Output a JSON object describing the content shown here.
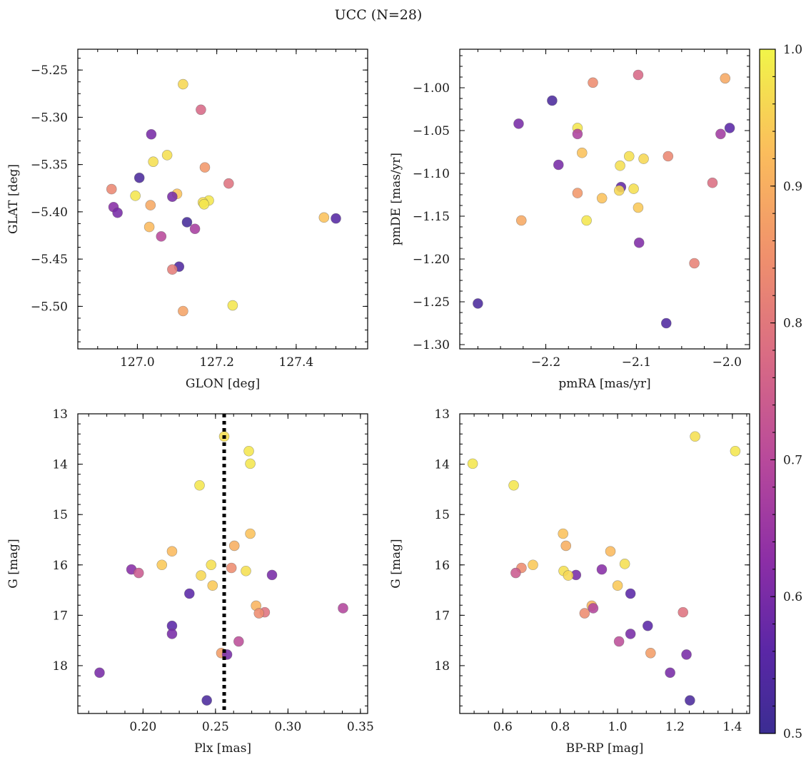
{
  "title": "UCC (N=28)",
  "chart_data": [
    {
      "type": "scatter",
      "xlabel": "GLON [deg]",
      "ylabel": "GLAT [deg]",
      "xlim": [
        126.85,
        127.58
      ],
      "ylim": [
        -5.545,
        -5.228
      ],
      "y_inverted": false,
      "x_ticks": [
        127.0,
        127.2,
        127.4
      ],
      "x_tick_labels": [
        "127.0",
        "127.2",
        "127.4"
      ],
      "y_ticks": [
        -5.25,
        -5.3,
        -5.35,
        -5.4,
        -5.45,
        -5.5
      ],
      "y_tick_labels": [
        "−5.25",
        "−5.30",
        "−5.35",
        "−5.40",
        "−5.45",
        "−5.50"
      ],
      "points": [
        {
          "x": 127.115,
          "y": -5.265,
          "c": 0.96
        },
        {
          "x": 127.16,
          "y": -5.292,
          "c": 0.77
        },
        {
          "x": 127.035,
          "y": -5.318,
          "c": 0.6
        },
        {
          "x": 127.075,
          "y": -5.34,
          "c": 0.97
        },
        {
          "x": 127.04,
          "y": -5.347,
          "c": 0.97
        },
        {
          "x": 127.17,
          "y": -5.353,
          "c": 0.86
        },
        {
          "x": 127.005,
          "y": -5.364,
          "c": 0.53
        },
        {
          "x": 127.23,
          "y": -5.37,
          "c": 0.79
        },
        {
          "x": 126.935,
          "y": -5.376,
          "c": 0.83
        },
        {
          "x": 127.1,
          "y": -5.381,
          "c": 0.93
        },
        {
          "x": 126.995,
          "y": -5.383,
          "c": 0.98
        },
        {
          "x": 127.088,
          "y": -5.384,
          "c": 0.6
        },
        {
          "x": 127.18,
          "y": -5.388,
          "c": 0.98
        },
        {
          "x": 127.165,
          "y": -5.39,
          "c": 0.97
        },
        {
          "x": 127.168,
          "y": -5.392,
          "c": 0.98
        },
        {
          "x": 127.033,
          "y": -5.393,
          "c": 0.89
        },
        {
          "x": 126.94,
          "y": -5.395,
          "c": 0.62
        },
        {
          "x": 126.95,
          "y": -5.401,
          "c": 0.6
        },
        {
          "x": 127.47,
          "y": -5.406,
          "c": 0.93
        },
        {
          "x": 127.5,
          "y": -5.407,
          "c": 0.55
        },
        {
          "x": 127.125,
          "y": -5.411,
          "c": 0.52
        },
        {
          "x": 127.03,
          "y": -5.416,
          "c": 0.92
        },
        {
          "x": 127.145,
          "y": -5.418,
          "c": 0.67
        },
        {
          "x": 127.06,
          "y": -5.426,
          "c": 0.7
        },
        {
          "x": 127.105,
          "y": -5.458,
          "c": 0.54
        },
        {
          "x": 127.088,
          "y": -5.461,
          "c": 0.81
        },
        {
          "x": 127.115,
          "y": -5.505,
          "c": 0.88
        },
        {
          "x": 127.24,
          "y": -5.499,
          "c": 0.98
        }
      ]
    },
    {
      "type": "scatter",
      "xlabel": "pmRA [mas/yr]",
      "ylabel": "pmDE [mas/yr]",
      "xlim": [
        -2.295,
        -1.975
      ],
      "ylim": [
        -1.305,
        -0.955
      ],
      "y_inverted": false,
      "x_ticks": [
        -2.2,
        -2.1,
        -2.0
      ],
      "x_tick_labels": [
        "−2.2",
        "−2.1",
        "−2.0"
      ],
      "y_ticks": [
        -1.0,
        -1.05,
        -1.1,
        -1.15,
        -1.2,
        -1.25,
        -1.3
      ],
      "y_tick_labels": [
        "−1.00",
        "−1.05",
        "−1.10",
        "−1.15",
        "−1.20",
        "−1.25",
        "−1.30"
      ],
      "points": [
        {
          "x": -2.098,
          "y": -0.985,
          "c": 0.77
        },
        {
          "x": -2.002,
          "y": -0.989,
          "c": 0.89
        },
        {
          "x": -2.148,
          "y": -0.994,
          "c": 0.84
        },
        {
          "x": -2.193,
          "y": -1.015,
          "c": 0.53
        },
        {
          "x": -2.23,
          "y": -1.042,
          "c": 0.6
        },
        {
          "x": -1.997,
          "y": -1.047,
          "c": 0.56
        },
        {
          "x": -2.165,
          "y": -1.047,
          "c": 0.98
        },
        {
          "x": -2.165,
          "y": -1.054,
          "c": 0.68
        },
        {
          "x": -2.007,
          "y": -1.054,
          "c": 0.66
        },
        {
          "x": -2.16,
          "y": -1.076,
          "c": 0.93
        },
        {
          "x": -2.108,
          "y": -1.08,
          "c": 0.97
        },
        {
          "x": -2.065,
          "y": -1.08,
          "c": 0.83
        },
        {
          "x": -2.092,
          "y": -1.083,
          "c": 0.96
        },
        {
          "x": -2.118,
          "y": -1.091,
          "c": 0.97
        },
        {
          "x": -2.186,
          "y": -1.09,
          "c": 0.6
        },
        {
          "x": -2.016,
          "y": -1.111,
          "c": 0.78
        },
        {
          "x": -2.117,
          "y": -1.116,
          "c": 0.57
        },
        {
          "x": -2.103,
          "y": -1.118,
          "c": 0.97
        },
        {
          "x": -2.119,
          "y": -1.12,
          "c": 0.96
        },
        {
          "x": -2.165,
          "y": -1.123,
          "c": 0.86
        },
        {
          "x": -2.138,
          "y": -1.129,
          "c": 0.93
        },
        {
          "x": -2.098,
          "y": -1.14,
          "c": 0.94
        },
        {
          "x": -2.227,
          "y": -1.155,
          "c": 0.89
        },
        {
          "x": -2.155,
          "y": -1.155,
          "c": 0.98
        },
        {
          "x": -2.097,
          "y": -1.181,
          "c": 0.61
        },
        {
          "x": -2.036,
          "y": -1.205,
          "c": 0.82
        },
        {
          "x": -2.275,
          "y": -1.252,
          "c": 0.53
        },
        {
          "x": -2.067,
          "y": -1.275,
          "c": 0.54
        }
      ]
    },
    {
      "type": "scatter",
      "xlabel": "Plx [mas]",
      "ylabel": "G [mag]",
      "xlim": [
        0.155,
        0.355
      ],
      "ylim": [
        13.0,
        18.95
      ],
      "y_inverted": true,
      "vline": 0.256,
      "x_ticks": [
        0.2,
        0.25,
        0.3,
        0.35
      ],
      "x_tick_labels": [
        "0.20",
        "0.25",
        "0.30",
        "0.35"
      ],
      "y_ticks": [
        13,
        14,
        15,
        16,
        17,
        18
      ],
      "y_tick_labels": [
        "13",
        "14",
        "15",
        "16",
        "17",
        "18"
      ],
      "points": [
        {
          "x": 0.256,
          "y": 13.45,
          "c": 0.97
        },
        {
          "x": 0.273,
          "y": 13.74,
          "c": 0.98
        },
        {
          "x": 0.274,
          "y": 13.99,
          "c": 0.98
        },
        {
          "x": 0.239,
          "y": 14.42,
          "c": 0.98
        },
        {
          "x": 0.274,
          "y": 15.38,
          "c": 0.93
        },
        {
          "x": 0.263,
          "y": 15.62,
          "c": 0.9
        },
        {
          "x": 0.22,
          "y": 15.73,
          "c": 0.92
        },
        {
          "x": 0.213,
          "y": 16.0,
          "c": 0.94
        },
        {
          "x": 0.247,
          "y": 16.0,
          "c": 0.97
        },
        {
          "x": 0.261,
          "y": 16.06,
          "c": 0.84
        },
        {
          "x": 0.192,
          "y": 16.09,
          "c": 0.62
        },
        {
          "x": 0.271,
          "y": 16.12,
          "c": 0.97
        },
        {
          "x": 0.197,
          "y": 16.16,
          "c": 0.74
        },
        {
          "x": 0.289,
          "y": 16.2,
          "c": 0.6
        },
        {
          "x": 0.24,
          "y": 16.21,
          "c": 0.96
        },
        {
          "x": 0.248,
          "y": 16.41,
          "c": 0.94
        },
        {
          "x": 0.232,
          "y": 16.57,
          "c": 0.56
        },
        {
          "x": 0.278,
          "y": 16.81,
          "c": 0.91
        },
        {
          "x": 0.338,
          "y": 16.86,
          "c": 0.69
        },
        {
          "x": 0.284,
          "y": 16.94,
          "c": 0.79
        },
        {
          "x": 0.28,
          "y": 16.96,
          "c": 0.84
        },
        {
          "x": 0.22,
          "y": 17.21,
          "c": 0.56
        },
        {
          "x": 0.22,
          "y": 17.37,
          "c": 0.6
        },
        {
          "x": 0.266,
          "y": 17.52,
          "c": 0.71
        },
        {
          "x": 0.254,
          "y": 17.75,
          "c": 0.87
        },
        {
          "x": 0.258,
          "y": 17.78,
          "c": 0.6
        },
        {
          "x": 0.17,
          "y": 18.14,
          "c": 0.6
        },
        {
          "x": 0.244,
          "y": 18.69,
          "c": 0.53
        }
      ]
    },
    {
      "type": "scatter",
      "xlabel": "BP-RP [mag]",
      "ylabel": "G [mag]",
      "xlim": [
        0.45,
        1.46
      ],
      "ylim": [
        13.0,
        18.95
      ],
      "y_inverted": true,
      "x_ticks": [
        0.6,
        0.8,
        1.0,
        1.2,
        1.4
      ],
      "x_tick_labels": [
        "0.6",
        "0.8",
        "1.0",
        "1.2",
        "1.4"
      ],
      "y_ticks": [
        13,
        14,
        15,
        16,
        17,
        18
      ],
      "y_tick_labels": [
        "13",
        "14",
        "15",
        "16",
        "17",
        "18"
      ],
      "points": [
        {
          "x": 1.27,
          "y": 13.45,
          "c": 0.97
        },
        {
          "x": 1.41,
          "y": 13.74,
          "c": 0.98
        },
        {
          "x": 0.495,
          "y": 13.99,
          "c": 0.98
        },
        {
          "x": 0.638,
          "y": 14.42,
          "c": 0.98
        },
        {
          "x": 0.81,
          "y": 15.38,
          "c": 0.93
        },
        {
          "x": 0.82,
          "y": 15.62,
          "c": 0.9
        },
        {
          "x": 0.975,
          "y": 15.73,
          "c": 0.92
        },
        {
          "x": 0.705,
          "y": 16.0,
          "c": 0.94
        },
        {
          "x": 1.025,
          "y": 15.98,
          "c": 0.97
        },
        {
          "x": 0.665,
          "y": 16.06,
          "c": 0.84
        },
        {
          "x": 0.945,
          "y": 16.09,
          "c": 0.62
        },
        {
          "x": 0.812,
          "y": 16.12,
          "c": 0.97
        },
        {
          "x": 0.645,
          "y": 16.16,
          "c": 0.74
        },
        {
          "x": 0.855,
          "y": 16.2,
          "c": 0.6
        },
        {
          "x": 0.828,
          "y": 16.21,
          "c": 0.96
        },
        {
          "x": 1.0,
          "y": 16.41,
          "c": 0.94
        },
        {
          "x": 1.045,
          "y": 16.57,
          "c": 0.56
        },
        {
          "x": 0.91,
          "y": 16.81,
          "c": 0.91
        },
        {
          "x": 0.915,
          "y": 16.86,
          "c": 0.69
        },
        {
          "x": 1.228,
          "y": 16.94,
          "c": 0.79
        },
        {
          "x": 0.885,
          "y": 16.96,
          "c": 0.84
        },
        {
          "x": 1.105,
          "y": 17.21,
          "c": 0.56
        },
        {
          "x": 1.045,
          "y": 17.37,
          "c": 0.6
        },
        {
          "x": 1.005,
          "y": 17.52,
          "c": 0.71
        },
        {
          "x": 1.115,
          "y": 17.75,
          "c": 0.87
        },
        {
          "x": 1.24,
          "y": 17.78,
          "c": 0.6
        },
        {
          "x": 1.183,
          "y": 18.14,
          "c": 0.6
        },
        {
          "x": 1.252,
          "y": 18.69,
          "c": 0.53
        }
      ]
    }
  ],
  "colorbar": {
    "min": 0.5,
    "max": 1.0,
    "colormap": "plasma",
    "ticks": [
      0.5,
      0.6,
      0.7,
      0.8,
      0.9,
      1.0
    ],
    "tick_labels": [
      "0.5",
      "0.6",
      "0.7",
      "0.8",
      "0.9",
      "1.0"
    ]
  }
}
